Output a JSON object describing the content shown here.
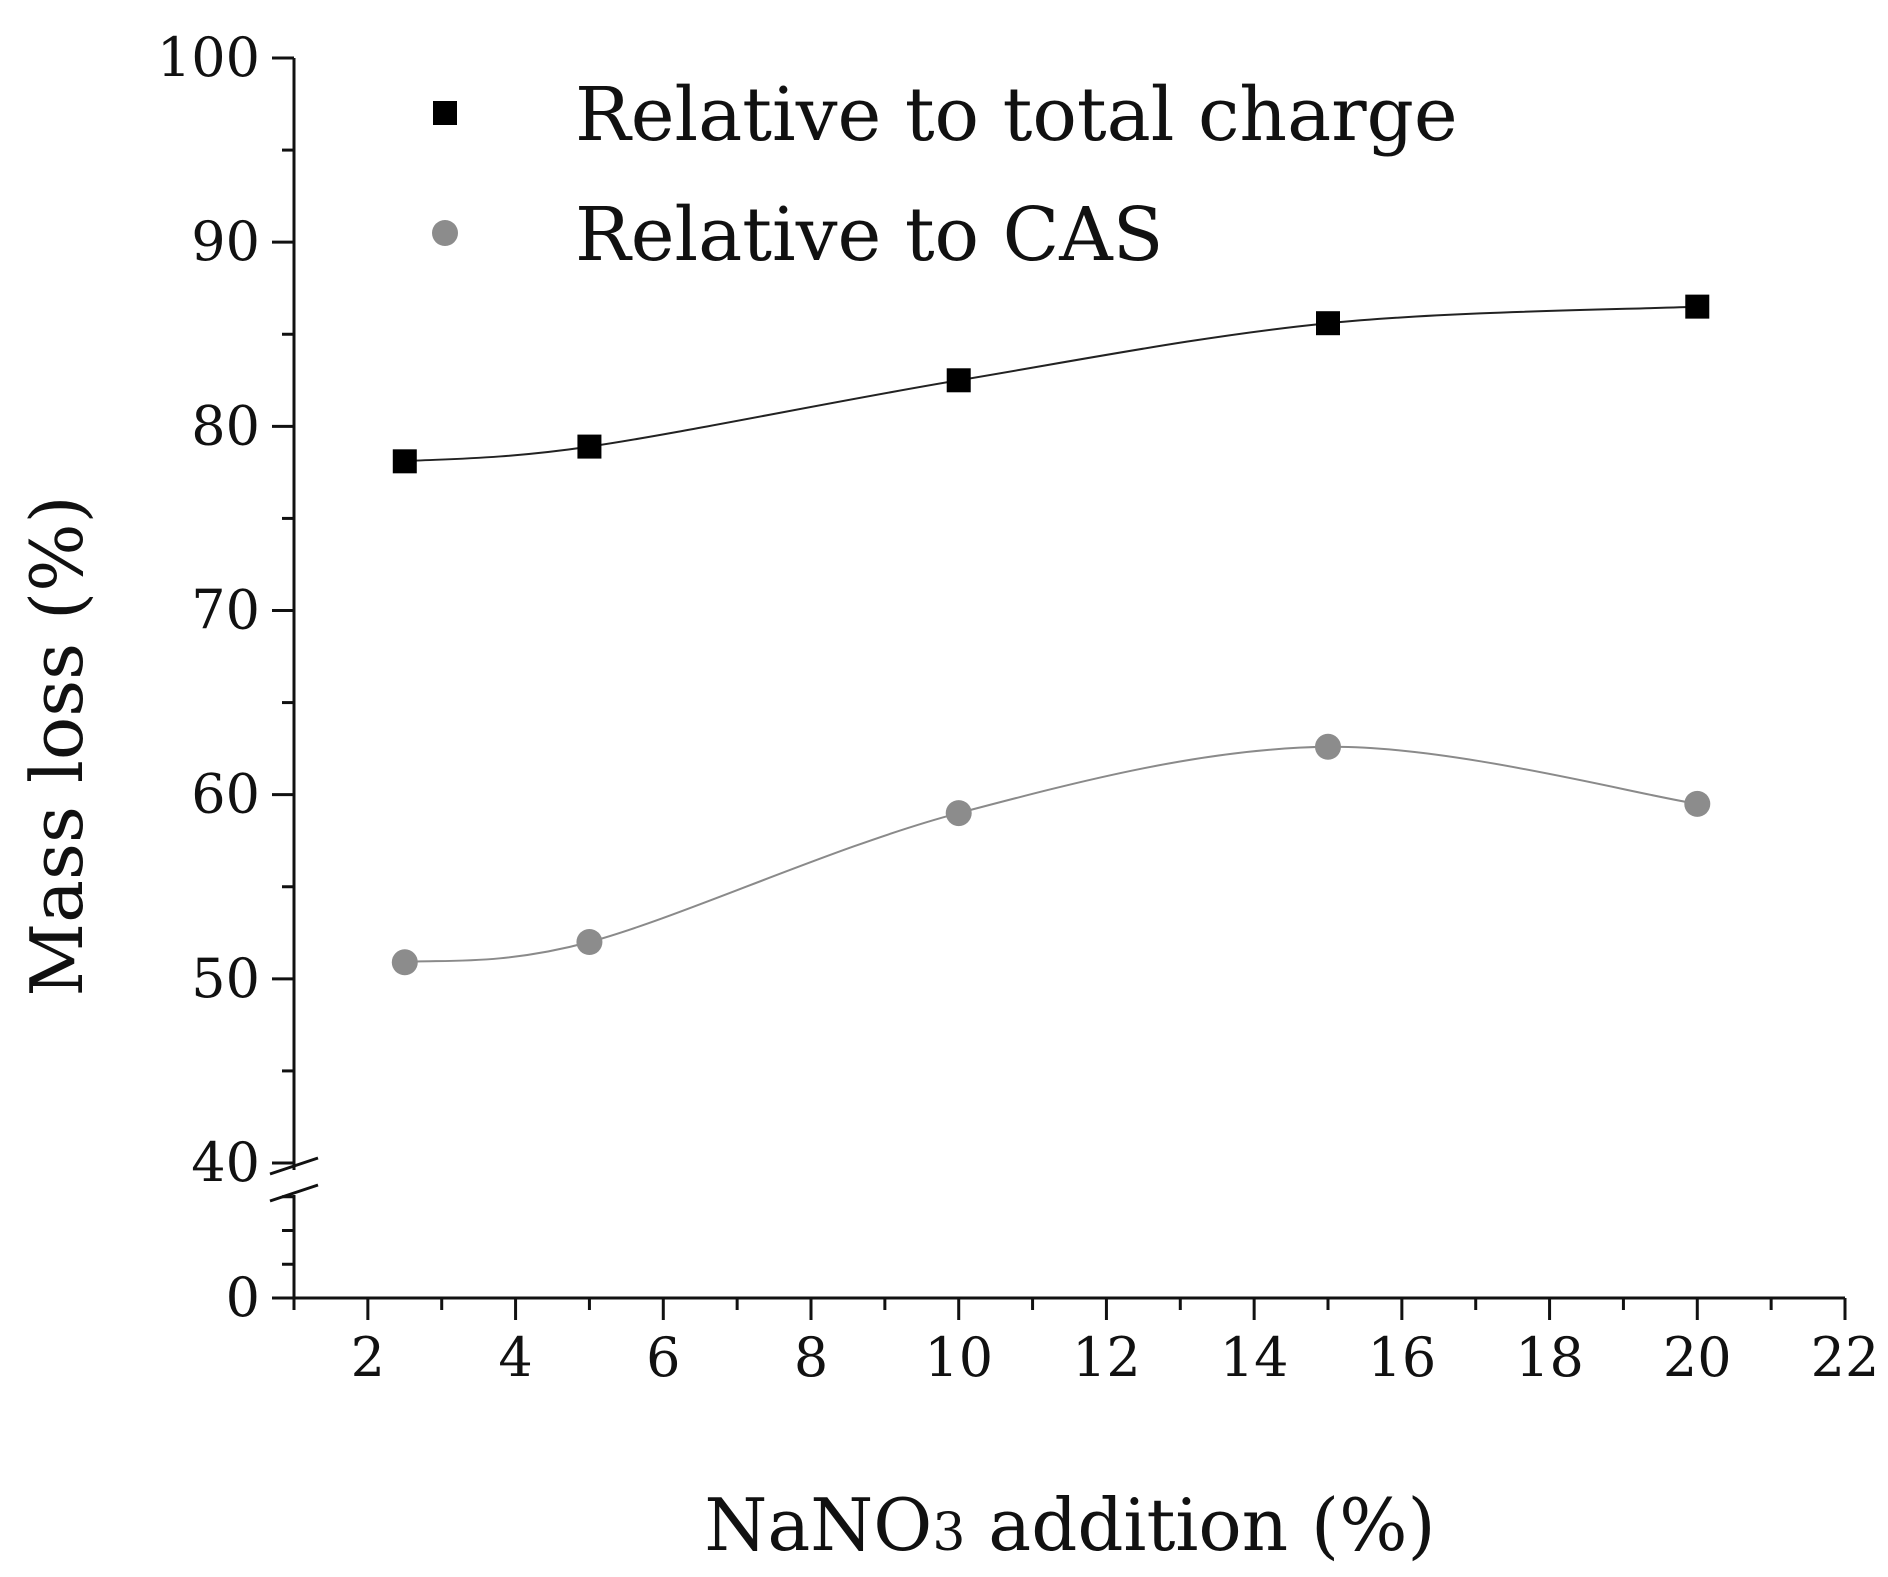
{
  "chart_data": {
    "type": "scatter",
    "title": "",
    "xlabel": "NaNO3 addition (%)",
    "xlabel_parts": {
      "pre": "NaNO",
      "sub": "3",
      "post": " addition (%)"
    },
    "ylabel": "Mass loss (%)",
    "xlim": [
      1,
      22
    ],
    "ylim_lower_segment": [
      0,
      40
    ],
    "ylim_upper_segment": [
      40,
      100
    ],
    "axis_break": "y between 0 and 40",
    "x_ticks": [
      2,
      4,
      6,
      8,
      10,
      12,
      14,
      16,
      18,
      20,
      22
    ],
    "y_ticks": [
      0,
      40,
      50,
      60,
      70,
      80,
      90,
      100
    ],
    "legend_position": "top-left",
    "grid": false,
    "series": [
      {
        "name": "Relative to total charge",
        "marker": "square",
        "color": "#000000",
        "curve": "smooth",
        "x": [
          2.5,
          5,
          10,
          15,
          20
        ],
        "y": [
          78.1,
          78.9,
          82.5,
          85.6,
          86.5
        ]
      },
      {
        "name": "Relative to CAS",
        "marker": "circle",
        "color": "#8c8c8c",
        "curve": "smooth",
        "x": [
          2.5,
          5,
          10,
          15,
          20
        ],
        "y": [
          50.9,
          52.0,
          59.0,
          62.6,
          59.5
        ]
      }
    ]
  }
}
